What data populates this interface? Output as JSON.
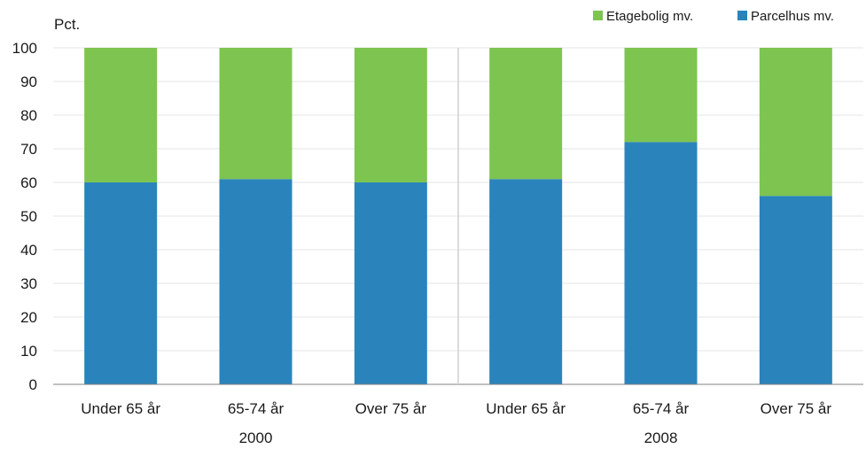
{
  "chart_data": {
    "type": "bar",
    "stacked": true,
    "ylabel": "Pct.",
    "ylim": [
      0,
      100
    ],
    "yticks": [
      0,
      10,
      20,
      30,
      40,
      50,
      60,
      70,
      80,
      90,
      100
    ],
    "grid": true,
    "legend_position": "top-right",
    "groups": [
      {
        "label": "2000",
        "categories": [
          "Under 65 år",
          "65-74 år",
          "Over 75 år"
        ]
      },
      {
        "label": "2008",
        "categories": [
          "Under 65 år",
          "65-74 år",
          "Over 75 år"
        ]
      }
    ],
    "series": [
      {
        "name": "Parcelhus mv.",
        "color": "#2a84bb",
        "values": [
          60,
          61,
          60,
          61,
          72,
          56
        ]
      },
      {
        "name": "Etagebolig mv.",
        "color": "#7dc451",
        "values": [
          40,
          39,
          40,
          39,
          28,
          44
        ]
      }
    ],
    "legend_order": [
      "Etagebolig mv.",
      "Parcelhus mv."
    ]
  }
}
